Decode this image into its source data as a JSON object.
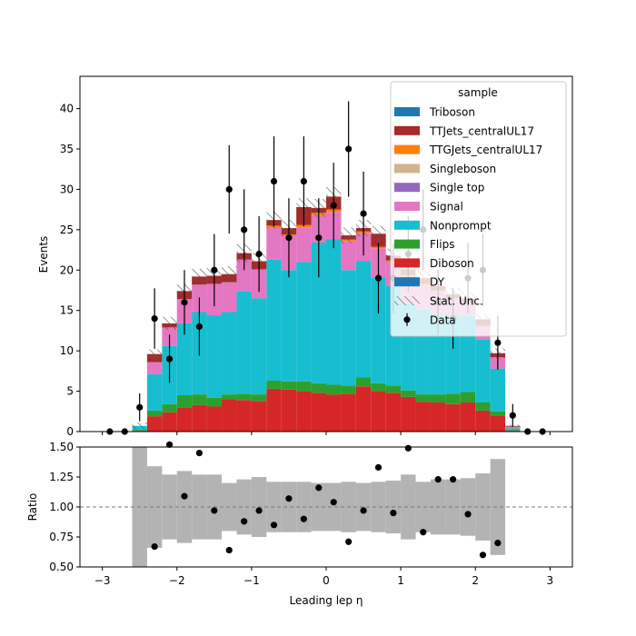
{
  "chart_data": [
    {
      "type": "bar",
      "stacked": true,
      "x_edges": [
        -3.0,
        -2.8,
        -2.6,
        -2.4,
        -2.2,
        -2.0,
        -1.8,
        -1.6,
        -1.4,
        -1.2,
        -1.0,
        -0.8,
        -0.6,
        -0.4,
        -0.2,
        0.0,
        0.2,
        0.4,
        0.6,
        0.8,
        1.0,
        1.2,
        1.4,
        1.6,
        1.8,
        2.0,
        2.2,
        2.4,
        2.6,
        2.8,
        3.0
      ],
      "xlim": [
        -3.3,
        3.3
      ],
      "ylim": [
        0,
        44
      ],
      "xticks": [
        -3,
        -2,
        -1,
        0,
        1,
        2,
        3
      ],
      "yticks": [
        0,
        5,
        10,
        15,
        20,
        25,
        30,
        35,
        40
      ],
      "xlabel": "",
      "ylabel": "Events",
      "legend_title": "sample",
      "legend_position": "top-right",
      "series": [
        {
          "name": "DY",
          "color": "#1f77b4",
          "values": [
            0,
            0,
            0,
            0,
            0,
            0,
            0,
            0,
            0,
            0,
            0,
            0,
            0,
            0,
            0,
            0,
            0,
            0,
            0,
            0,
            0,
            0,
            0,
            0,
            0,
            0,
            0,
            0,
            0,
            0
          ]
        },
        {
          "name": "Diboson",
          "color": "#d62728",
          "values": [
            0,
            0,
            0.1,
            1.9,
            2.4,
            3.0,
            3.3,
            3.1,
            4.0,
            3.9,
            3.8,
            5.3,
            5.2,
            5.0,
            4.8,
            4.6,
            4.7,
            5.6,
            5.0,
            4.8,
            4.3,
            3.7,
            3.6,
            3.4,
            3.6,
            2.6,
            2.0,
            0.1,
            0,
            0
          ]
        },
        {
          "name": "Flips",
          "color": "#2ca02c",
          "values": [
            0,
            0,
            0.1,
            0.7,
            1.0,
            1.5,
            1.3,
            1.1,
            0.6,
            0.8,
            0.8,
            1.0,
            1.0,
            1.2,
            1.2,
            1.2,
            1.0,
            1.1,
            1.0,
            0.9,
            0.8,
            0.9,
            1.0,
            1.3,
            1.3,
            1.0,
            0.5,
            0.1,
            0,
            0
          ]
        },
        {
          "name": "Nonprompt",
          "color": "#17becf",
          "values": [
            0,
            0,
            0.5,
            4.5,
            7.2,
            8.9,
            10.2,
            10.2,
            10.2,
            12.7,
            11.9,
            15.0,
            13.8,
            14.8,
            17.4,
            18.0,
            14.3,
            14.4,
            13.1,
            12.3,
            10.8,
            10.5,
            9.9,
            9.7,
            9.4,
            7.8,
            5.3,
            0.2,
            0,
            0
          ]
        },
        {
          "name": "Signal",
          "color": "#e377c2",
          "values": [
            0,
            0,
            0,
            1.5,
            2.3,
            3.0,
            3.4,
            3.9,
            3.7,
            3.9,
            3.6,
            3.9,
            4.2,
            4.3,
            3.4,
            3.4,
            3.6,
            3.5,
            3.6,
            3.0,
            3.3,
            3.0,
            2.8,
            2.1,
            1.6,
            1.7,
            1.4,
            0.2,
            0,
            0
          ]
        },
        {
          "name": "Single top",
          "color": "#9467bd",
          "values": [
            0,
            0,
            0,
            0,
            0,
            0,
            0,
            0,
            0,
            0,
            0,
            0,
            0,
            0,
            0,
            0,
            0,
            0,
            0,
            0,
            0,
            0,
            0,
            0,
            0,
            0,
            0,
            0,
            0,
            0
          ]
        },
        {
          "name": "Singleboson",
          "color": "#d2b48c",
          "values": [
            0,
            0,
            0,
            0,
            0,
            0,
            0,
            0,
            0,
            0,
            0,
            0,
            0,
            0,
            0,
            0,
            0,
            0,
            0,
            0,
            0,
            0,
            0,
            0,
            0,
            0,
            0,
            0,
            0,
            0
          ]
        },
        {
          "name": "TTGJets_centralUL17",
          "color": "#ff7f0e",
          "values": [
            0,
            0,
            0,
            0,
            0,
            0,
            0,
            0,
            0,
            0,
            0,
            0.3,
            0.2,
            0.3,
            0.3,
            0.3,
            0.2,
            0.2,
            0.2,
            0.2,
            0.2,
            0.2,
            0.2,
            0,
            0,
            0,
            0,
            0,
            0,
            0
          ]
        },
        {
          "name": "TTJets_centralUL17",
          "color": "#a52a2a",
          "values": [
            0,
            0,
            0,
            1.0,
            0.5,
            1.0,
            1.0,
            1.0,
            1.0,
            0.8,
            1.0,
            0.7,
            0.8,
            2.2,
            0.6,
            1.6,
            0.5,
            0.4,
            1.6,
            0.6,
            0.7,
            0.7,
            0.5,
            0.5,
            0.6,
            0.8,
            0.5,
            0.1,
            0,
            0
          ]
        },
        {
          "name": "Triboson",
          "color": "#1f77b4",
          "values": [
            0,
            0,
            0,
            0,
            0,
            0,
            0,
            0,
            0,
            0,
            0,
            0,
            0,
            0,
            0,
            0,
            0,
            0,
            0,
            0,
            0,
            0,
            0,
            0,
            0,
            0,
            0,
            0,
            0,
            0
          ]
        }
      ],
      "stat_unc_label": "Stat. Unc.",
      "stat_unc_fraction": [
        0,
        0,
        0.6,
        0.06,
        0.06,
        0.05,
        0.05,
        0.05,
        0.05,
        0.05,
        0.05,
        0.04,
        0.04,
        0.04,
        0.04,
        0.04,
        0.04,
        0.04,
        0.04,
        0.04,
        0.05,
        0.05,
        0.05,
        0.05,
        0.05,
        0.05,
        0.06,
        0.2,
        0,
        0
      ],
      "data_label": "Data",
      "data": {
        "x": [
          -2.9,
          -2.7,
          -2.5,
          -2.3,
          -2.1,
          -1.9,
          -1.7,
          -1.5,
          -1.3,
          -1.1,
          -0.9,
          -0.7,
          -0.5,
          -0.3,
          -0.1,
          0.1,
          0.3,
          0.5,
          0.7,
          0.9,
          1.1,
          1.3,
          1.5,
          1.7,
          1.9,
          2.1,
          2.3,
          2.5,
          2.7,
          2.9
        ],
        "y": [
          0,
          0,
          3,
          14,
          9,
          16,
          13,
          20,
          30,
          25,
          22,
          31,
          24,
          31,
          24,
          28,
          35,
          27,
          19,
          19,
          22,
          25,
          16,
          14,
          19,
          20,
          11,
          2,
          0,
          0
        ]
      }
    },
    {
      "type": "scatter",
      "xlim": [
        -3.3,
        3.3
      ],
      "ylim": [
        0.5,
        1.5
      ],
      "xticks": [
        -3,
        -2,
        -1,
        0,
        1,
        2,
        3
      ],
      "yticks": [
        0.5,
        0.75,
        1.0,
        1.25,
        1.5
      ],
      "xtick_labels": [
        "−3",
        "−2",
        "−1",
        "0",
        "1",
        "2",
        "3"
      ],
      "ytick_labels": [
        "0.50",
        "0.75",
        "1.00",
        "1.25",
        "1.50"
      ],
      "xlabel": "Leading lep η",
      "ylabel": "Ratio",
      "reference_line": 1.0,
      "x": [
        -2.3,
        -2.1,
        -1.9,
        -1.7,
        -1.5,
        -1.3,
        -1.1,
        -0.9,
        -0.7,
        -0.5,
        -0.3,
        -0.1,
        0.1,
        0.3,
        0.5,
        0.7,
        0.9,
        1.1,
        1.3,
        1.5,
        1.7,
        1.9,
        2.1,
        2.3
      ],
      "y": [
        0.67,
        1.52,
        1.09,
        1.45,
        0.97,
        0.64,
        0.88,
        0.97,
        0.85,
        1.07,
        0.9,
        1.16,
        1.04,
        0.71,
        0.97,
        1.33,
        0.95,
        1.49,
        0.79,
        1.23,
        1.23,
        0.94,
        0.6,
        0.7
      ],
      "band_edges": [
        -2.6,
        -2.4,
        -2.2,
        -2.0,
        -1.8,
        -1.6,
        -1.4,
        -1.2,
        -1.0,
        -0.8,
        -0.6,
        -0.4,
        -0.2,
        0.0,
        0.2,
        0.4,
        0.6,
        0.8,
        1.0,
        1.2,
        1.4,
        1.6,
        1.8,
        2.0,
        2.2,
        2.4
      ],
      "band_halfwidth": [
        0.6,
        0.34,
        0.27,
        0.3,
        0.27,
        0.27,
        0.2,
        0.23,
        0.25,
        0.21,
        0.21,
        0.21,
        0.2,
        0.2,
        0.21,
        0.2,
        0.21,
        0.22,
        0.27,
        0.21,
        0.23,
        0.23,
        0.24,
        0.28,
        0.4
      ]
    }
  ]
}
